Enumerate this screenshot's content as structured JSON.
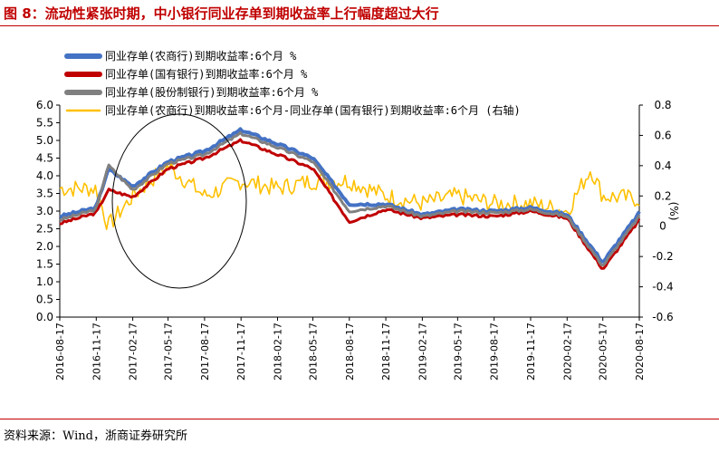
{
  "title": "图 8：流动性紧张时期，中小银行同业存单到期收益率上行幅度超过大行",
  "source": "资料来源：Wind，浙商证券研究所",
  "colors": {
    "rural": "#4472c4",
    "state": "#c00000",
    "joint": "#808080",
    "spread": "#ffc000",
    "accent": "#c00000"
  },
  "chart_data": {
    "type": "line",
    "series": [
      {
        "name": "同业存单(农商行)到期收益率:6个月 %",
        "axis": "left",
        "x": [
          "2016-08-17",
          "2016-11-17",
          "2016-12-17",
          "2017-02-17",
          "2017-05-17",
          "2017-08-17",
          "2017-11-17",
          "2018-02-17",
          "2018-05-17",
          "2018-08-17",
          "2018-11-17",
          "2019-02-17",
          "2019-05-17",
          "2019-08-17",
          "2019-11-17",
          "2020-02-17",
          "2020-05-17",
          "2020-08-17"
        ],
        "values": [
          2.85,
          3.1,
          4.2,
          3.7,
          4.4,
          4.7,
          5.3,
          4.9,
          4.5,
          3.2,
          3.2,
          2.9,
          3.05,
          3.0,
          3.1,
          2.9,
          1.55,
          2.95
        ]
      },
      {
        "name": "同业存单(国有银行)到期收益率:6个月 %",
        "axis": "left",
        "x": [
          "2016-08-17",
          "2016-11-17",
          "2016-12-17",
          "2017-02-17",
          "2017-05-17",
          "2017-08-17",
          "2017-11-17",
          "2018-02-17",
          "2018-05-17",
          "2018-08-17",
          "2018-11-17",
          "2019-02-17",
          "2019-05-17",
          "2019-08-17",
          "2019-11-17",
          "2020-02-17",
          "2020-05-17",
          "2020-08-17"
        ],
        "values": [
          2.65,
          2.95,
          3.6,
          3.4,
          4.2,
          4.5,
          5.0,
          4.6,
          4.2,
          2.7,
          3.05,
          2.8,
          2.9,
          2.85,
          3.0,
          2.8,
          1.35,
          2.75
        ]
      },
      {
        "name": "同业存单(股份制银行)到期收益率:6个月 %",
        "axis": "left",
        "x": [
          "2016-08-17",
          "2016-11-17",
          "2016-12-17",
          "2017-02-17",
          "2017-05-17",
          "2017-08-17",
          "2017-11-17",
          "2018-02-17",
          "2018-05-17",
          "2018-08-17",
          "2018-11-17",
          "2019-02-17",
          "2019-05-17",
          "2019-08-17",
          "2019-11-17",
          "2020-02-17",
          "2020-05-17",
          "2020-08-17"
        ],
        "values": [
          2.75,
          3.05,
          4.3,
          3.6,
          4.35,
          4.6,
          5.2,
          4.8,
          4.4,
          3.0,
          3.15,
          2.85,
          3.0,
          2.95,
          3.05,
          2.85,
          1.45,
          2.85
        ]
      },
      {
        "name": "同业存单(农商行)到期收益率:6个月-同业存单(国有银行)到期收益率:6个月 (右轴)",
        "axis": "right",
        "x": [
          "2016-08-17",
          "2016-11-17",
          "2016-12-17",
          "2017-02-17",
          "2017-05-17",
          "2017-08-17",
          "2017-11-17",
          "2018-02-17",
          "2018-05-17",
          "2018-08-17",
          "2018-11-17",
          "2019-02-17",
          "2019-05-17",
          "2019-08-17",
          "2019-11-17",
          "2020-02-17",
          "2020-04-17",
          "2020-05-17",
          "2020-08-17"
        ],
        "values": [
          0.25,
          0.25,
          0.0,
          0.2,
          0.4,
          0.2,
          0.3,
          0.25,
          0.3,
          0.3,
          0.2,
          0.15,
          0.2,
          0.15,
          0.15,
          0.1,
          0.38,
          0.2,
          0.18
        ]
      }
    ],
    "x_ticks": [
      "2016-08-17",
      "2016-11-17",
      "2017-02-17",
      "2017-05-17",
      "2017-08-17",
      "2017-11-17",
      "2018-02-17",
      "2018-05-17",
      "2018-08-17",
      "2018-11-17",
      "2019-02-17",
      "2019-05-17",
      "2019-08-17",
      "2019-11-17",
      "2020-02-17",
      "2020-05-17",
      "2020-08-17"
    ],
    "y_left_ticks": [
      "0.0",
      "0.5",
      "1.0",
      "1.5",
      "2.0",
      "2.5",
      "3.0",
      "3.5",
      "4.0",
      "4.5",
      "5.0",
      "5.5",
      "6.0"
    ],
    "y_right_ticks": [
      "-0.6",
      "-0.4",
      "-0.2",
      "0",
      "0.2",
      "0.4",
      "0.6",
      "0.8"
    ],
    "ylim_left": [
      0,
      6
    ],
    "ylim_right": [
      -0.6,
      0.8
    ],
    "ylabel_right": "(%)",
    "legend_position": "top-left",
    "annotation": "ellipse highlighting 2016-11 to 2017-08",
    "grid": false
  }
}
